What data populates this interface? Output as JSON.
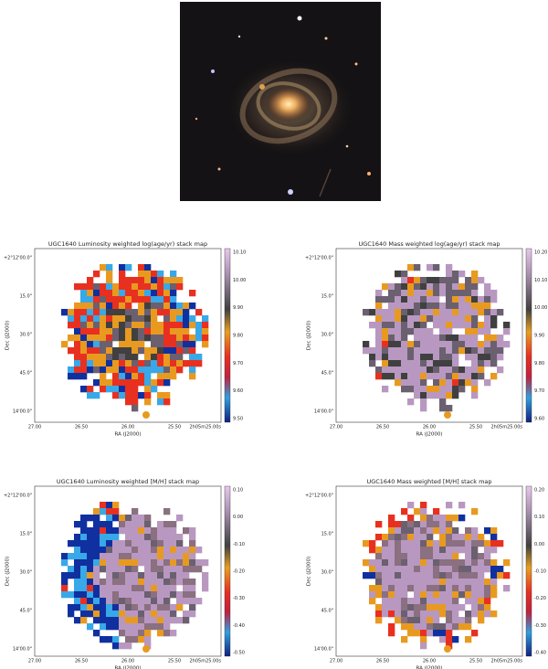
{
  "figure": {
    "x_label": "RA (J2000)",
    "y_label": "Dec (J2000)",
    "x_ticks": [
      "27.00",
      "26.50",
      "26.00",
      "25.50",
      "2h05m25.00s"
    ],
    "y_ticks": [
      "+2°12'00.0\"",
      "15.0\"",
      "30.0\"",
      "45.0\"",
      "14'00.0\""
    ],
    "panels": [
      {
        "title": "UGC1640 Luminosity weighted log(age/yr) stack map",
        "colorbar_ticks": [
          "10.10",
          "10.00",
          "9.90",
          "9.80",
          "9.70",
          "9.60",
          "9.50"
        ]
      },
      {
        "title": "UGC1640 Mass weighted log(age/yr) stack map",
        "colorbar_ticks": [
          "10.20",
          "10.10",
          "10.00",
          "9.90",
          "9.80",
          "9.70",
          "9.60"
        ]
      },
      {
        "title": "UGC1640 Luminosity weighted [M/H] stack map",
        "colorbar_ticks": [
          "0.10",
          "0.00",
          "-0.10",
          "-0.20",
          "-0.30",
          "-0.40",
          "-0.50"
        ]
      },
      {
        "title": "UGC1640 Mass weighted [M/H] stack map",
        "colorbar_ticks": [
          "0.20",
          "0.10",
          "0.00",
          "-0.10",
          "-0.20",
          "-0.30",
          "-0.40"
        ]
      }
    ]
  }
}
